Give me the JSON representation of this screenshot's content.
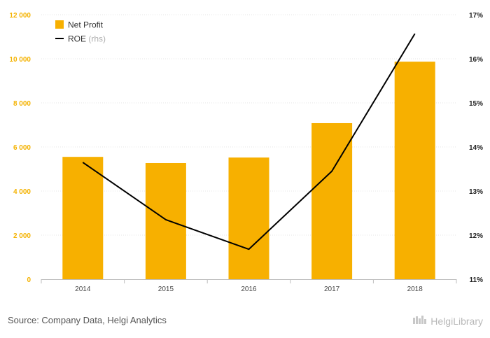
{
  "chart_data": {
    "type": "bar+line",
    "categories": [
      "2014",
      "2015",
      "2016",
      "2017",
      "2018"
    ],
    "series": [
      {
        "name": "Net Profit",
        "type": "bar",
        "axis": "left",
        "color": "#f7b000",
        "values": [
          5550,
          5270,
          5520,
          7080,
          9870
        ]
      },
      {
        "name": "ROE",
        "name_suffix": "(rhs)",
        "type": "line",
        "axis": "right",
        "color": "#000000",
        "values": [
          13.65,
          12.35,
          11.68,
          13.45,
          16.57
        ]
      }
    ],
    "y_left": {
      "min": 0,
      "max": 12000,
      "ticks": [
        "0",
        "2 000",
        "4 000",
        "6 000",
        "8 000",
        "10 000",
        "12 000"
      ]
    },
    "y_right": {
      "min": 11,
      "max": 17,
      "ticks": [
        "11%",
        "12%",
        "13%",
        "14%",
        "15%",
        "16%",
        "17%"
      ]
    },
    "legend": {
      "position": "top-left"
    }
  },
  "footer": {
    "source": "Source: Company Data, Helgi Analytics",
    "brand": "HelgiLibrary"
  }
}
